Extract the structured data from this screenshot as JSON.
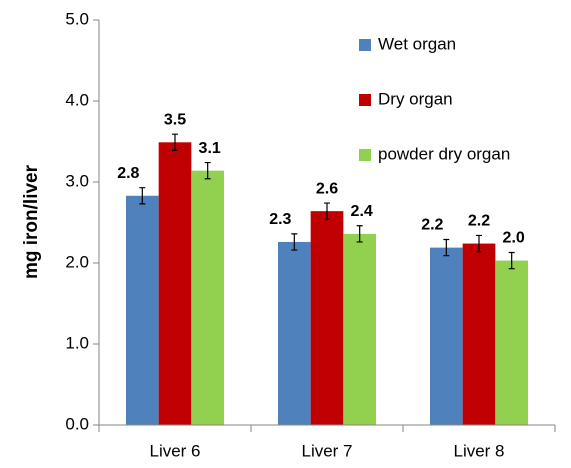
{
  "chart_data": {
    "type": "bar",
    "y_label": "mg iron/liver",
    "categories": [
      "Liver 6",
      "Liver 7",
      "Liver 8"
    ],
    "series": [
      {
        "name": "Wet organ",
        "color": "#4f81bd",
        "values": [
          2.83,
          2.26,
          2.19
        ],
        "errors": [
          0.1,
          0.1,
          0.1
        ],
        "value_labels": [
          "2.8",
          "2.3",
          "2.2"
        ]
      },
      {
        "name": "Dry organ",
        "color": "#c00000",
        "values": [
          3.49,
          2.64,
          2.24
        ],
        "errors": [
          0.1,
          0.1,
          0.1
        ],
        "value_labels": [
          "3.5",
          "2.6",
          "2.2"
        ]
      },
      {
        "name": "powder dry organ",
        "color": "#92d050",
        "values": [
          3.14,
          2.36,
          2.03
        ],
        "errors": [
          0.1,
          0.1,
          0.1
        ],
        "value_labels": [
          "3.1",
          "2.4",
          "2.0"
        ]
      }
    ],
    "ylim": [
      0,
      5
    ],
    "yticks": [
      {
        "value": 0,
        "label": "0.0"
      },
      {
        "value": 1,
        "label": "1.0"
      },
      {
        "value": 2,
        "label": "2.0"
      },
      {
        "value": 3,
        "label": "3.0"
      },
      {
        "value": 4,
        "label": "4.0"
      },
      {
        "value": 5,
        "label": "5.0"
      }
    ],
    "legend": "top-right"
  }
}
